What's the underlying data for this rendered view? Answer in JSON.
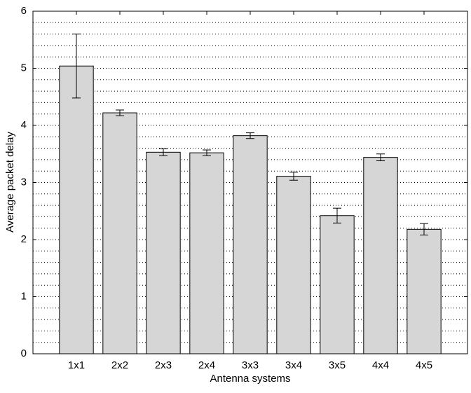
{
  "chart_data": {
    "type": "bar",
    "x_label": "Antenna systems",
    "y_label": "Average packet delay",
    "categories": [
      "1x1",
      "2x2",
      "2x3",
      "2x4",
      "3x3",
      "3x4",
      "3x5",
      "4x4",
      "4x5"
    ],
    "values": [
      5.04,
      4.22,
      3.53,
      3.52,
      3.82,
      3.11,
      2.42,
      3.44,
      2.18
    ],
    "errors": [
      0.56,
      0.05,
      0.06,
      0.05,
      0.05,
      0.07,
      0.13,
      0.06,
      0.1
    ],
    "color": "#d6d6d6",
    "ylim": [
      0,
      6
    ],
    "yticks": [
      0,
      1,
      2,
      3,
      4,
      5,
      6
    ],
    "minor_yticks": [
      0.2,
      0.4,
      0.6,
      0.8,
      1.2,
      1.4,
      1.6,
      1.8,
      2.2,
      2.4,
      2.6,
      2.8,
      3.2,
      3.4,
      3.6,
      3.8,
      4.2,
      4.4,
      4.6,
      4.8,
      5.2,
      5.4,
      5.6,
      5.8
    ],
    "grid": true
  }
}
